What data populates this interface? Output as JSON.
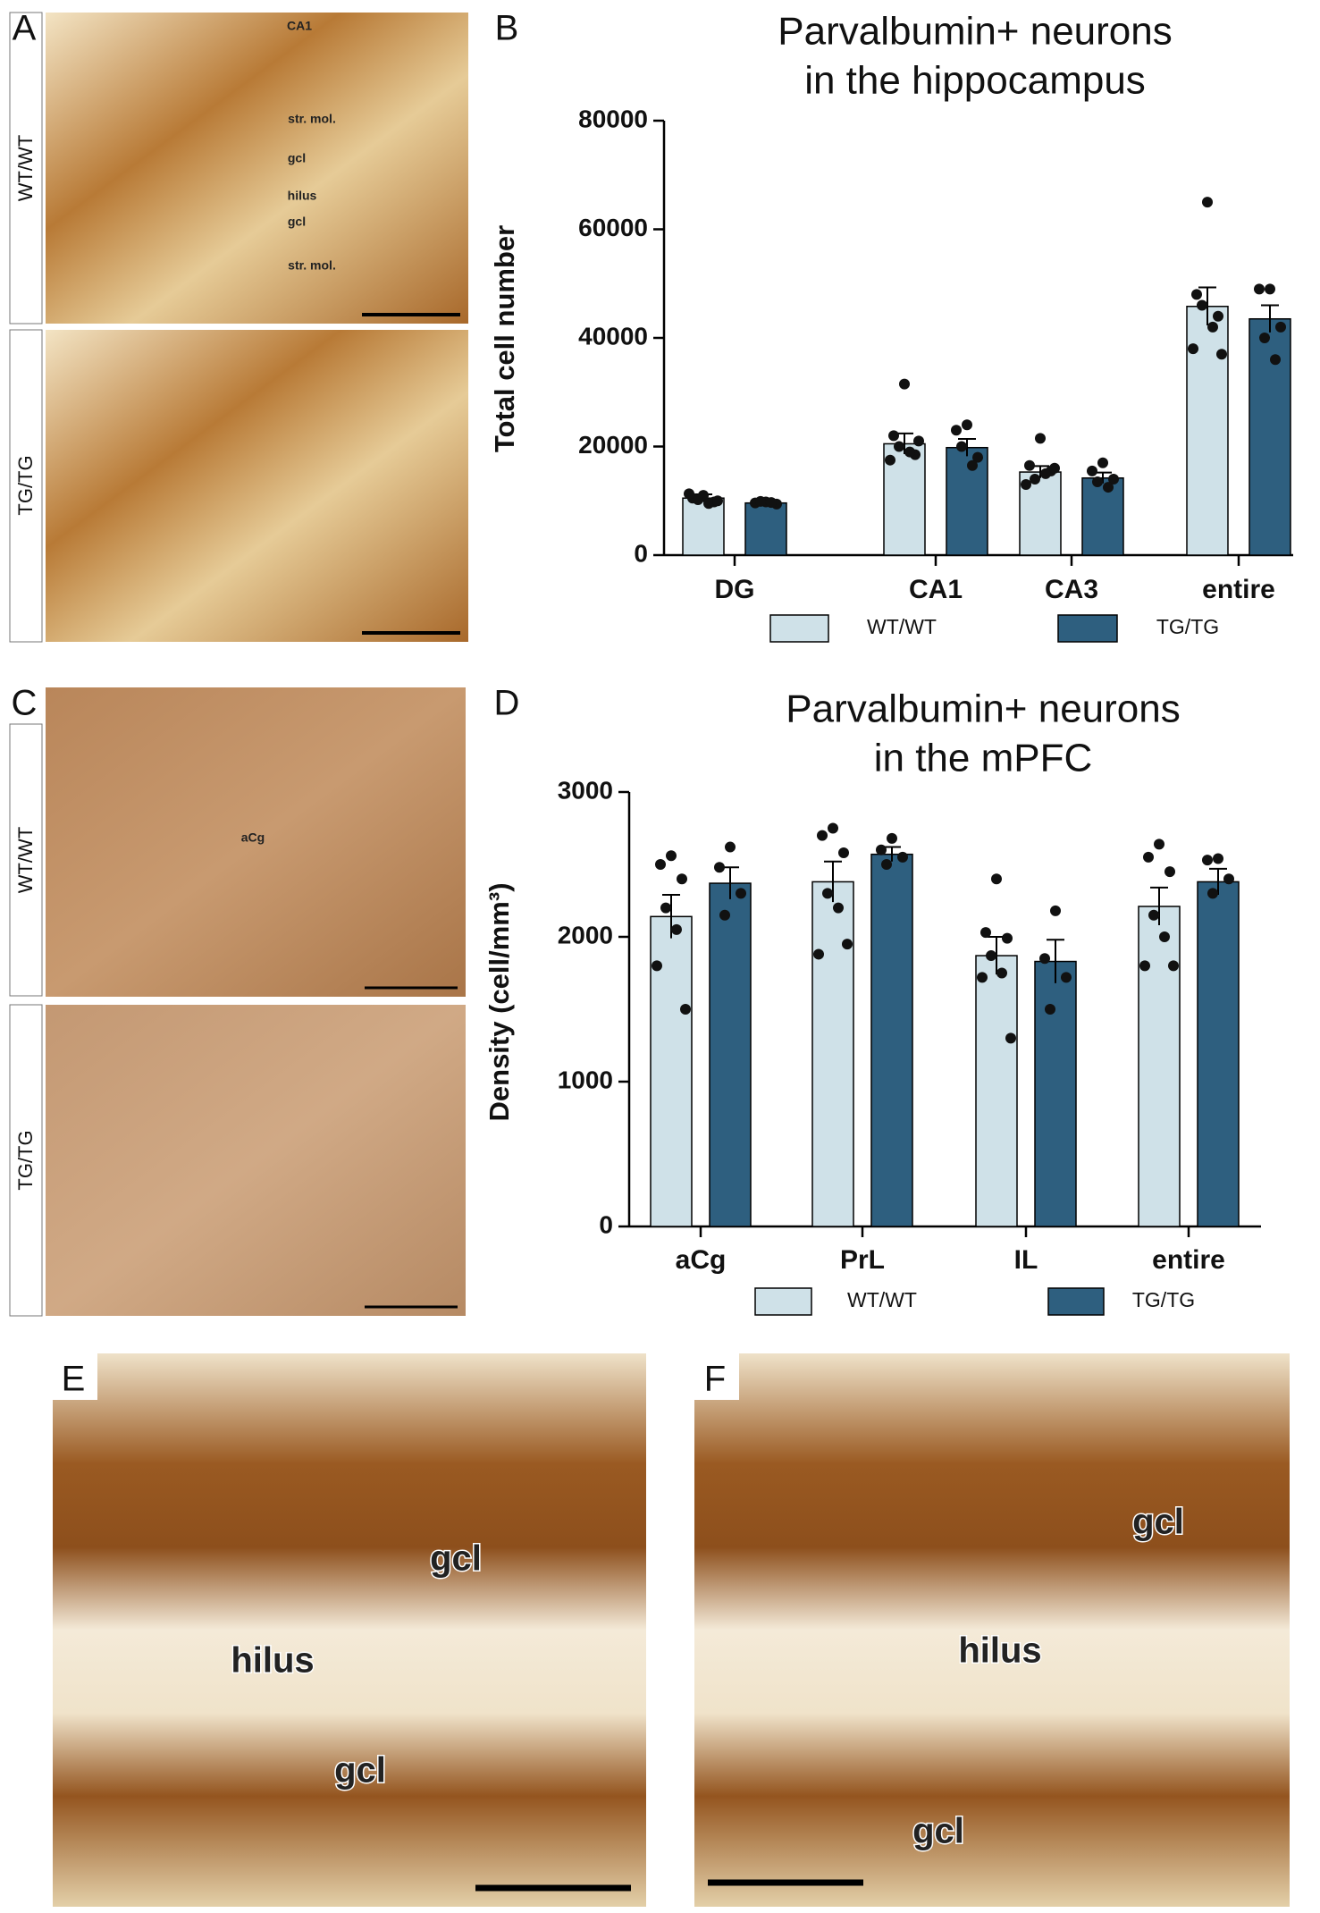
{
  "panels": {
    "A": {
      "letter": "A",
      "rows": [
        "WT/WT",
        "TG/TG"
      ],
      "annotations": [
        "CA1",
        "str. mol.",
        "gcl",
        "hilus",
        "gcl",
        "str. mol."
      ]
    },
    "B": {
      "letter": "B"
    },
    "C": {
      "letter": "C",
      "rows": [
        "WT/WT",
        "TG/TG"
      ],
      "annotations": [
        "aCg"
      ]
    },
    "D": {
      "letter": "D"
    },
    "E": {
      "letter": "E",
      "annotations": [
        "gcl",
        "hilus",
        "gcl"
      ]
    },
    "F": {
      "letter": "F",
      "annotations": [
        "gcl",
        "hilus",
        "gcl"
      ]
    }
  },
  "chart_data": [
    {
      "type": "bar",
      "title": [
        "Parvalbumin+ neurons",
        "in the hippocampus"
      ],
      "ylabel": "Total cell number",
      "categories": [
        "DG",
        "CA1",
        "CA3",
        "entire"
      ],
      "ylim": [
        0,
        80000
      ],
      "yticks": [
        0,
        20000,
        40000,
        60000,
        80000
      ],
      "legend": "bottom",
      "series": [
        {
          "name": "WT/WT",
          "color": "#cfe1e8",
          "values": [
            10500,
            20500,
            15300,
            45800
          ],
          "errors": [
            700,
            1900,
            1100,
            3500
          ],
          "points": [
            [
              11000,
              10500,
              9800,
              10200,
              9500,
              11300,
              10000
            ],
            [
              31500,
              22000,
              18500,
              20000,
              19000,
              17500,
              21000
            ],
            [
              21500,
              16500,
              15500,
              14000,
              15000,
              13000,
              16000
            ],
            [
              65000,
              48000,
              44000,
              46000,
              42000,
              38000,
              37000
            ]
          ]
        },
        {
          "name": "TG/TG",
          "color": "#2e5f7f",
          "values": [
            9600,
            19800,
            14200,
            43500
          ],
          "errors": [
            300,
            1600,
            1000,
            2500
          ],
          "points": [
            [
              9800,
              9600,
              9400,
              9900,
              9700
            ],
            [
              24000,
              23000,
              18000,
              20000,
              16500
            ],
            [
              17000,
              15500,
              14000,
              13500,
              12500
            ],
            [
              49000,
              49000,
              42000,
              40000,
              36000
            ]
          ]
        }
      ]
    },
    {
      "type": "bar",
      "title": [
        "Parvalbumin+ neurons",
        "in the mPFC"
      ],
      "ylabel": "Density  (cell/mm³)",
      "categories": [
        "aCg",
        "PrL",
        "IL",
        "entire"
      ],
      "ylim": [
        0,
        3000
      ],
      "yticks": [
        0,
        1000,
        2000,
        3000
      ],
      "legend": "bottom",
      "series": [
        {
          "name": "WT/WT",
          "color": "#cfe1e8",
          "values": [
            2140,
            2380,
            1870,
            2210
          ],
          "errors": [
            150,
            140,
            130,
            130
          ],
          "points": [
            [
              2560,
              2500,
              2400,
              2200,
              2050,
              1800,
              1500
            ],
            [
              2750,
              2700,
              2580,
              2300,
              2200,
              1880,
              1950
            ],
            [
              2400,
              2030,
              1990,
              1870,
              1750,
              1720,
              1300
            ],
            [
              2640,
              2550,
              2450,
              2150,
              2000,
              1800,
              1800
            ]
          ]
        },
        {
          "name": "TG/TG",
          "color": "#2e5f7f",
          "values": [
            2370,
            2570,
            1830,
            2380
          ],
          "errors": [
            110,
            50,
            150,
            90
          ],
          "points": [
            [
              2620,
              2480,
              2300,
              2150
            ],
            [
              2680,
              2600,
              2550,
              2500
            ],
            [
              2180,
              1850,
              1720,
              1500
            ],
            [
              2540,
              2530,
              2400,
              2300
            ]
          ]
        }
      ]
    }
  ]
}
